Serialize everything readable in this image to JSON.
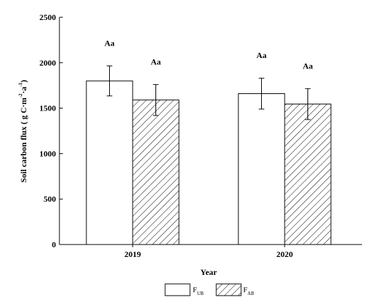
{
  "chart_data": {
    "type": "bar",
    "categories": [
      "2019",
      "2020"
    ],
    "xlabel": "Year",
    "ylabel": "Soil carbon flux (g C m-2 a-1)",
    "ylabel_parts": {
      "main": "Soil carbon flux ( g C",
      "sep": "·",
      "m": "m",
      "exp1": "-2",
      "a": "a",
      "exp2": "-1",
      "close": ")"
    },
    "ylim": [
      0,
      2500
    ],
    "yticks": [
      0,
      500,
      1000,
      1500,
      2000,
      2500
    ],
    "legend_position": "bottom-center",
    "series": [
      {
        "name": "FUB",
        "label_main": "F",
        "label_sub": "UB",
        "fill": "white",
        "values": [
          1800,
          1660
        ],
        "errors": [
          165,
          170
        ],
        "annotations": [
          "Aa",
          "Aa"
        ]
      },
      {
        "name": "FAB",
        "label_main": "F",
        "label_sub": "AB",
        "fill": "hatch",
        "values": [
          1590,
          1545
        ],
        "errors": [
          170,
          170
        ],
        "annotations": [
          "Aa",
          "Aa"
        ]
      }
    ]
  },
  "colors": {
    "bar_stroke": "#000000",
    "bar_fill": "#ffffff",
    "hatch": "#000000"
  }
}
